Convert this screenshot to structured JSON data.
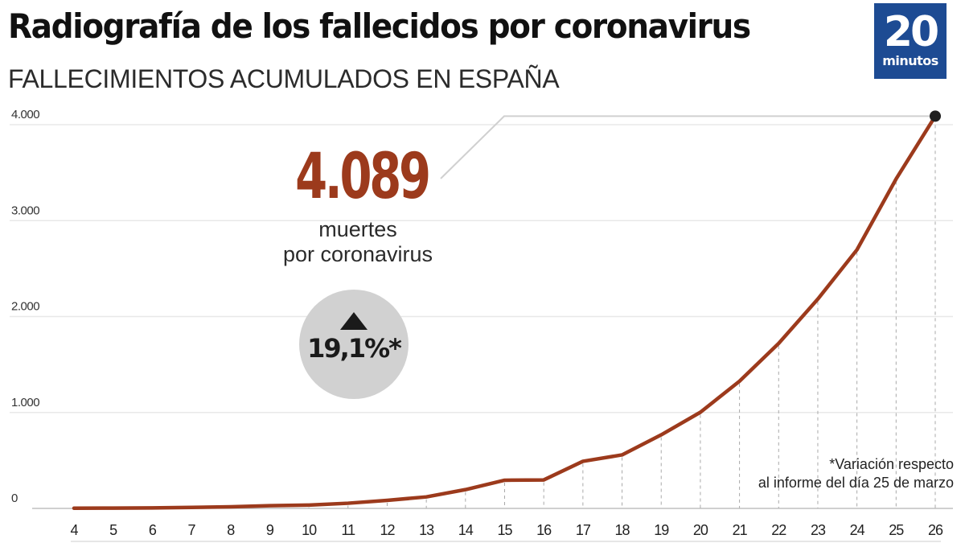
{
  "header": {
    "title": "Radiografía de los fallecidos por coronavirus",
    "subtitle": "FALLECIMIENTOS ACUMULADOS EN ESPAÑA"
  },
  "logo": {
    "number": "20",
    "word": "minutos",
    "color": "#1d4b93"
  },
  "highlight": {
    "value": "4.089",
    "label_line1": "muertes",
    "label_line2": "por coronavirus",
    "color": "#9c3a1c"
  },
  "variation": {
    "icon": "triangle-up-icon",
    "value": "19,1%*"
  },
  "footnote": {
    "line1": "*Variación respecto",
    "line2": "al informe del día 25 de marzo"
  },
  "chart_data": {
    "type": "line",
    "title": "Radiografía de los fallecidos por coronavirus",
    "subtitle": "FALLECIMIENTOS ACUMULADOS EN ESPAÑA",
    "xlabel": "",
    "ylabel": "",
    "x": [
      "4",
      "5",
      "6",
      "7",
      "8",
      "9",
      "10",
      "11",
      "12",
      "13",
      "14",
      "15",
      "16",
      "17",
      "18",
      "19",
      "20",
      "21",
      "22",
      "23",
      "24",
      "25",
      "26"
    ],
    "series": [
      {
        "name": "Fallecimientos acumulados",
        "color": "#9c3a1c",
        "values": [
          2,
          3,
          5,
          10,
          17,
          28,
          35,
          54,
          84,
          120,
          196,
          294,
          297,
          491,
          558,
          767,
          1002,
          1326,
          1720,
          2182,
          2696,
          3434,
          4089
        ]
      }
    ],
    "ylim": [
      0,
      4000
    ],
    "yticks": [
      0,
      1000,
      2000,
      3000,
      4000
    ],
    "ytick_labels": [
      "0",
      "1.000",
      "2.000",
      "3.000",
      "4.000"
    ],
    "grid": true,
    "legend": "none",
    "annotations": [
      {
        "x": "26",
        "text": "4.089 muertes por coronavirus"
      },
      {
        "text": "19,1%*"
      },
      {
        "text": "*Variación respecto al informe del día 25 de marzo"
      }
    ]
  }
}
